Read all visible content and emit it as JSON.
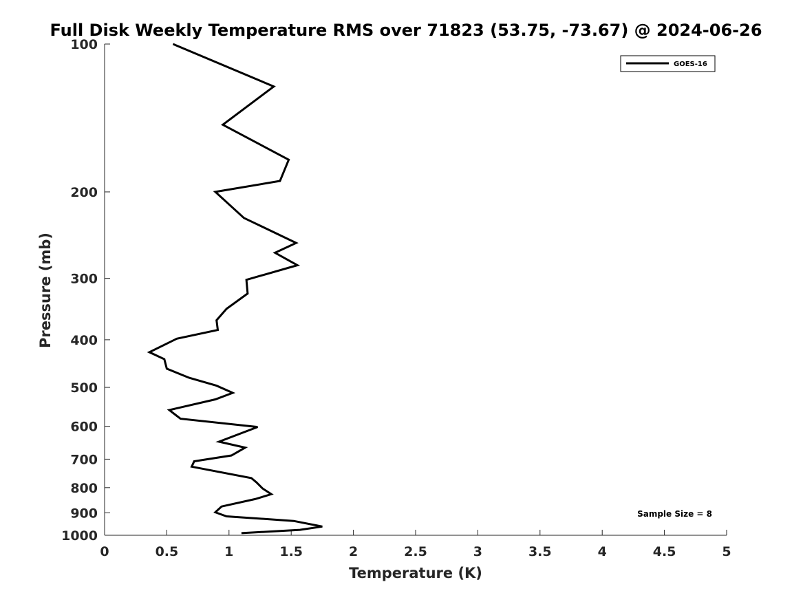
{
  "chart_data": {
    "type": "line",
    "title": "Full Disk Weekly Temperature RMS over 71823 (53.75, -73.67) @ 2024-06-26",
    "xlabel": "Temperature (K)",
    "ylabel": "Pressure (mb)",
    "xlim": [
      0,
      5
    ],
    "ylim": [
      100,
      1000
    ],
    "y_scale": "log",
    "y_reversed": true,
    "x_ticks": [
      0,
      0.5,
      1,
      1.5,
      2,
      2.5,
      3,
      3.5,
      4,
      4.5,
      5
    ],
    "x_tick_labels": [
      "0",
      "0.5",
      "1",
      "1.5",
      "2",
      "2.5",
      "3",
      "3.5",
      "4",
      "4.5",
      "5"
    ],
    "y_ticks": [
      100,
      200,
      300,
      400,
      500,
      600,
      700,
      800,
      900,
      1000
    ],
    "y_tick_labels": [
      "100",
      "200",
      "300",
      "400",
      "500",
      "600",
      "700",
      "800",
      "900",
      "1000"
    ],
    "grid": false,
    "legend_position": "top-right",
    "series": [
      {
        "name": "GOES-16",
        "color": "#000000",
        "x": [
          0.55,
          1.36,
          0.95,
          1.48,
          1.41,
          0.89,
          1.12,
          1.54,
          1.37,
          1.55,
          1.14,
          1.15,
          0.98,
          0.9,
          0.91,
          0.58,
          0.36,
          0.48,
          0.5,
          0.68,
          0.9,
          1.03,
          0.89,
          0.52,
          0.61,
          1.23,
          0.92,
          1.13,
          1.02,
          0.72,
          0.7,
          1.18,
          1.22,
          1.27,
          1.34,
          1.21,
          0.94,
          0.89,
          0.98,
          1.52,
          1.75,
          1.57,
          1.1
        ],
        "y": [
          100,
          122,
          146,
          172,
          190,
          200,
          226,
          254,
          266,
          282,
          302,
          322,
          346,
          365,
          382,
          398,
          424,
          438,
          458,
          478,
          496,
          513,
          529,
          556,
          579,
          602,
          645,
          663,
          688,
          707,
          725,
          765,
          780,
          803,
          825,
          844,
          874,
          898,
          915,
          935,
          960,
          975,
          990
        ]
      }
    ],
    "annotations": [
      "Sample Size = 8"
    ]
  }
}
